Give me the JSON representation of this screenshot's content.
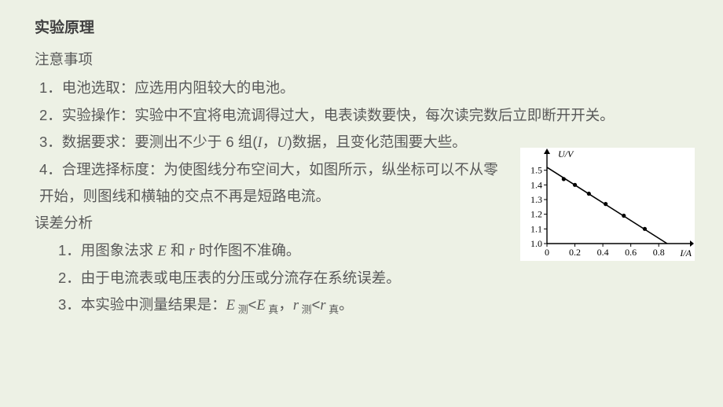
{
  "title": "实验原理",
  "notes_heading": "注意事项",
  "item1": "1．电池选取：应选用内阻较大的电池。",
  "item2": "2．实验操作：实验中不宜将电流调得过大，电表读数要快，每次读完数后立即断开开关。",
  "item3a": "3．数据要求：要测出不少于 6 组(",
  "item3b": "数据，且变化范围要大些。",
  "item4": "4．合理选择标度：为使图线分布空间大，如图所示，纵坐标可以不从零开始，则图线和横轴的交点不再是短路电流。",
  "error_heading": "误差分析",
  "err1a": "1．用图象法求 ",
  "err1b": " 和 ",
  "err1c": " 时作图不准确。",
  "err2": "2．由于电流表或电压表的分压或分流存在系统误差。",
  "err3": "3．本实验中测量结果是：",
  "chart": {
    "xlabel": "I/A",
    "ylabel": "U/V",
    "xlim": [
      0,
      0.9
    ],
    "ylim": [
      1.0,
      1.6
    ],
    "xticks": [
      "0",
      "0.2",
      "0.4",
      "0.6",
      "0.8"
    ],
    "yticks": [
      "1.0",
      "1.1",
      "1.2",
      "1.3",
      "1.4",
      "1.5"
    ],
    "line_start": [
      0.0,
      1.52
    ],
    "line_end": [
      0.86,
      1.0
    ],
    "points": [
      [
        0.12,
        1.44
      ],
      [
        0.2,
        1.4
      ],
      [
        0.3,
        1.34
      ],
      [
        0.42,
        1.27
      ],
      [
        0.55,
        1.19
      ],
      [
        0.7,
        1.1
      ]
    ],
    "axis_color": "#000000",
    "bg": "#ffffff",
    "font_size": 12
  }
}
